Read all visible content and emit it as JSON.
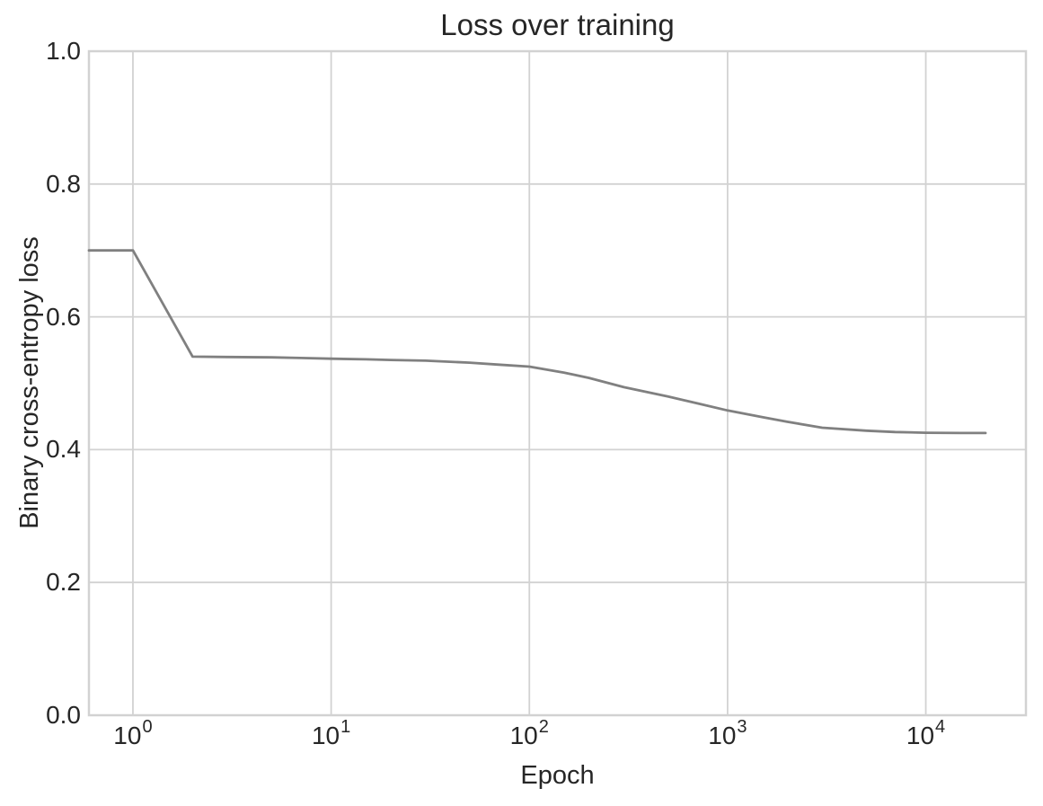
{
  "colors": {
    "background": "#ffffff",
    "grid": "#d2d2d2",
    "spine": "#d2d2d2",
    "text": "#262626",
    "line": "#808080"
  },
  "chart_data": {
    "type": "line",
    "title": "Loss over training",
    "xlabel": "Epoch",
    "ylabel": "Binary cross-entropy loss",
    "xscale": "log",
    "xlim": [
      0.6,
      32000
    ],
    "ylim": [
      0.0,
      1.0
    ],
    "grid": true,
    "legend": false,
    "line_color": "#808080",
    "line_width": 2.8,
    "x_ticks": [
      {
        "value": 1,
        "base": "10",
        "exp": "0"
      },
      {
        "value": 10,
        "base": "10",
        "exp": "1"
      },
      {
        "value": 100,
        "base": "10",
        "exp": "2"
      },
      {
        "value": 1000,
        "base": "10",
        "exp": "3"
      },
      {
        "value": 10000,
        "base": "10",
        "exp": "4"
      }
    ],
    "y_ticks": [
      {
        "value": 0.0,
        "label": "0.0"
      },
      {
        "value": 0.2,
        "label": "0.2"
      },
      {
        "value": 0.4,
        "label": "0.4"
      },
      {
        "value": 0.6,
        "label": "0.6"
      },
      {
        "value": 0.8,
        "label": "0.8"
      },
      {
        "value": 1.0,
        "label": "1.0"
      }
    ],
    "series": [
      {
        "name": "Binary cross-entropy loss",
        "x": [
          0.6,
          1,
          2,
          3,
          5,
          7,
          10,
          15,
          20,
          30,
          50,
          70,
          100,
          150,
          200,
          300,
          500,
          700,
          1000,
          1500,
          2000,
          3000,
          5000,
          7000,
          10000,
          15000,
          20000
        ],
        "y": [
          0.7,
          0.7,
          0.54,
          0.5395,
          0.539,
          0.538,
          0.537,
          0.536,
          0.535,
          0.534,
          0.531,
          0.528,
          0.525,
          0.516,
          0.508,
          0.494,
          0.48,
          0.47,
          0.459,
          0.449,
          0.442,
          0.433,
          0.4285,
          0.4265,
          0.4255,
          0.425,
          0.425
        ]
      }
    ]
  }
}
